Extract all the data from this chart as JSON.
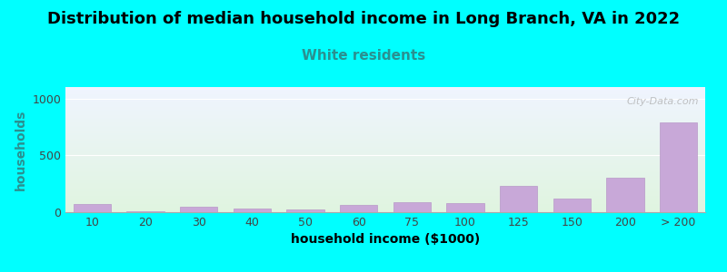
{
  "title": "Distribution of median household income in Long Branch, VA in 2022",
  "subtitle": "White residents",
  "xlabel": "household income ($1000)",
  "ylabel": "households",
  "background_color": "#00FFFF",
  "plot_bg_gradient_top": "#f0f4ff",
  "plot_bg_gradient_bottom": "#e0f5e0",
  "bar_color": "#c8a8d8",
  "bar_edge_color": "#b898c8",
  "categories": [
    "10",
    "20",
    "30",
    "40",
    "50",
    "60",
    "75",
    "100",
    "125",
    "150",
    "200",
    "> 200"
  ],
  "values": [
    68,
    10,
    50,
    35,
    20,
    60,
    90,
    80,
    230,
    120,
    300,
    790
  ],
  "ylim": [
    0,
    1100
  ],
  "yticks": [
    0,
    500,
    1000
  ],
  "title_fontsize": 13,
  "subtitle_fontsize": 11,
  "subtitle_color": "#2a9090",
  "axis_label_fontsize": 10,
  "tick_fontsize": 9,
  "ylabel_color": "#2a9090",
  "watermark": "City-Data.com"
}
